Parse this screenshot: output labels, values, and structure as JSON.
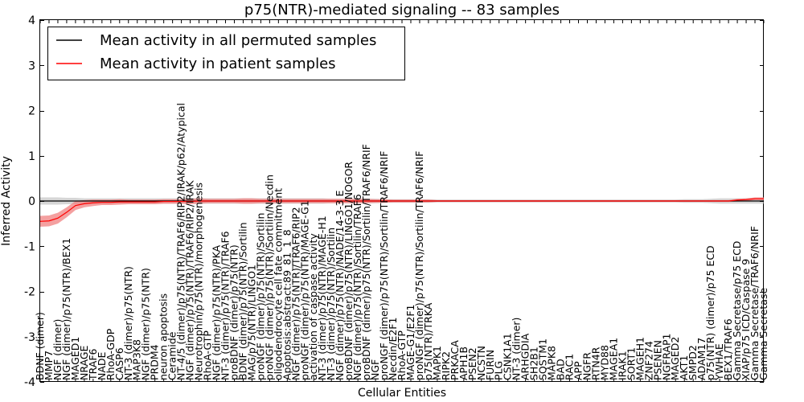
{
  "chart_data": {
    "type": "line",
    "title": "p75(NTR)-mediated signaling -- 83 samples",
    "xlabel": "Cellular Entities",
    "ylabel": "Inferred Activity",
    "ylim": [
      -4,
      4
    ],
    "yticks": [
      -4,
      -3,
      -2,
      -1,
      0,
      1,
      2,
      3,
      4
    ],
    "legend": {
      "position": "top-left",
      "entries": [
        {
          "name": "Mean activity in all permuted samples",
          "color": "#000000"
        },
        {
          "name": "Mean activity in patient samples",
          "color": "#ff0000"
        }
      ]
    },
    "colors": {
      "permuted_line": "#000000",
      "permuted_band": "#bbbbbb",
      "patient_line": "#ff0000",
      "patient_band": "#f08080"
    },
    "categories": [
      "BDNF (dimer)",
      "MMP7",
      "NGF (dimer)",
      "NGF (dimer)/p75(NTR)/BEX1",
      "MAGED1",
      "NRAGE",
      "TRAF6",
      "NADE",
      "RhoA-GDP",
      "CASP6",
      "NT-3 (dimer)/p75(NTR)",
      "MAP3K8",
      "NGF (dimer)/p75(NTR)",
      "PRDM4",
      "neuron apoptosis",
      "Ceramide",
      "NT-4/5 (dimer)/p75(NTR)/TRAF6/RIP2/IRAK/p62/Atypical",
      "NGF (dimer)/p75(NTR)/TRAF6/RIP2/IRAK",
      "Neurotrophin/p75(NTR)/morphogenesis",
      "RhoA-GTP",
      "NGF (dimer)/p75(NTR)/PKA",
      "NT-3 (dimer)/p75(NTR)/TRAF6",
      "proBDNF (dimer)/p75(NTR)",
      "BDNF (dimer)/p75(NTR)/Sortilin",
      "MAG/p75(NTR)/LINGO1",
      "proNGF (dimer)/p75(NTR)/Sortilin",
      "proNGF (dimer)/p75(NTR)/Sortilin/Necdin",
      "oligodendrocyte cell fate commitment",
      "Apoptosis:abstract:89_81_1_8",
      "NGF (dimer)/p75(NTR)/TRAF6/RIP2",
      "proNGF (dimer)/p75(NTR)/MAGE-G1",
      "activation of caspase activity",
      "NT-3 (dimer)/p75(NTR)/MAGE-H1",
      "NT-3 (dimer)/p75(NTR)/Sortilin",
      "NGF (dimer)/p75(NTR)/NADE/14-3-3 E",
      "proBDNF (dimer)/p75(NTR)/LINGO1/NOGOR",
      "NGF (dimer)/p75(NTR)/Sortilin/TRAF6",
      "proBDNF (dimer)/p75(NTR)/Sortilin/TRAF6/NRIF",
      "NGF",
      "proNGF (dimer)/p75(NTR)/Sortilin/TRAF6/NRIF",
      "Necdin/E2F1",
      "RhoA-GTP",
      "MAGE-G1/E2F1",
      "proNGF (dimer)/p75(NTR)/Sortilin/TRAF6/NRIF",
      "p75(NTR)/TRKA",
      "MAPK1",
      "RIPK2",
      "PRKACA",
      "APH1B",
      "PSEN2",
      "NCSTN",
      "FURIN",
      "PLG",
      "CSNK1A1",
      "NT-3 (dimer)",
      "ARHGDIA",
      "SH2B1",
      "SQSTM1",
      "MAPK8",
      "BAD",
      "RAC1",
      "APP",
      "NGFR",
      "RTN4R",
      "MYD88",
      "MAGEA1",
      "IRAK1",
      "SORT1",
      "MAGEH1",
      "ZNF274",
      "PSENEN",
      "NGFRAP1",
      "MAGED2",
      "AKT1",
      "SMPD2",
      "ADAM17",
      "p75(NTR) (dimer)/p75 ECD",
      "YWHAE",
      "BEX1/TRAF6",
      "Gamma Secretase/p75 ECD",
      "XIAP/p75 ICD/Caspase 9",
      "Gamma Secretase/TRAF6/NRIF",
      "Gamma Secretase"
    ],
    "patient_mean": [
      -0.45,
      -0.44,
      -0.38,
      -0.25,
      -0.1,
      -0.06,
      -0.04,
      -0.03,
      -0.03,
      -0.02,
      -0.02,
      -0.02,
      -0.02,
      -0.02,
      -0.01,
      -0.01,
      -0.01,
      -0.01,
      0.0,
      0.0,
      0.0,
      0.0,
      0.0,
      0.0,
      0.0,
      0.0,
      0.0,
      0.0,
      0.0,
      0.0,
      0.0,
      0.0,
      0.0,
      0.0,
      0.0,
      0.0,
      0.0,
      0.0,
      0.0,
      0.0,
      0.0,
      0.0,
      0.0,
      0.0,
      0.0,
      0.0,
      0.0,
      0.0,
      0.0,
      0.0,
      0.0,
      0.0,
      0.0,
      0.0,
      0.0,
      0.0,
      0.0,
      0.0,
      0.0,
      0.0,
      0.0,
      0.0,
      0.0,
      0.0,
      0.0,
      0.0,
      0.0,
      0.0,
      0.0,
      0.0,
      0.0,
      0.0,
      0.0,
      0.0,
      0.0,
      0.0,
      0.0,
      0.0,
      0.0,
      0.02,
      0.03,
      0.05,
      0.05
    ],
    "patient_band_halfwidth": [
      0.12,
      0.12,
      0.12,
      0.11,
      0.1,
      0.08,
      0.07,
      0.06,
      0.06,
      0.06,
      0.05,
      0.05,
      0.05,
      0.05,
      0.05,
      0.05,
      0.05,
      0.06,
      0.06,
      0.05,
      0.05,
      0.05,
      0.05,
      0.06,
      0.06,
      0.05,
      0.05,
      0.05,
      0.05,
      0.05,
      0.05,
      0.05,
      0.05,
      0.05,
      0.05,
      0.05,
      0.05,
      0.05,
      0.04,
      0.04,
      0.03,
      0.03,
      0.03,
      0.03,
      0.03,
      0.02,
      0.02,
      0.02,
      0.02,
      0.02,
      0.02,
      0.02,
      0.02,
      0.02,
      0.02,
      0.02,
      0.02,
      0.02,
      0.02,
      0.02,
      0.02,
      0.02,
      0.02,
      0.02,
      0.02,
      0.02,
      0.02,
      0.02,
      0.02,
      0.02,
      0.02,
      0.02,
      0.02,
      0.02,
      0.02,
      0.02,
      0.02,
      0.02,
      0.02,
      0.03,
      0.03,
      0.03,
      0.03
    ],
    "permuted_mean": [
      0.0,
      0.0,
      0.0,
      0.0,
      0.0,
      0.0,
      0.0,
      0.0,
      0.0,
      0.0,
      0.0,
      0.0,
      0.0,
      0.0,
      0.0,
      0.0,
      0.0,
      0.0,
      0.0,
      0.0,
      0.0,
      0.0,
      0.0,
      0.0,
      0.0,
      0.0,
      0.0,
      0.0,
      0.0,
      0.0,
      0.0,
      0.0,
      0.0,
      0.0,
      0.0,
      0.0,
      0.0,
      0.0,
      0.0,
      0.0,
      0.0,
      0.0,
      0.0,
      0.0,
      0.0,
      0.0,
      0.0,
      0.0,
      0.0,
      0.0,
      0.0,
      0.0,
      0.0,
      0.0,
      0.0,
      0.0,
      0.0,
      0.0,
      0.0,
      0.0,
      0.0,
      0.0,
      0.0,
      0.0,
      0.0,
      0.0,
      0.0,
      0.0,
      0.0,
      0.0,
      0.0,
      0.0,
      0.0,
      0.0,
      0.0,
      0.0,
      0.0,
      0.0,
      0.0,
      0.0,
      0.0,
      0.0,
      0.0
    ],
    "permuted_band_halfwidth": [
      0.08,
      0.08,
      0.08,
      0.07,
      0.07,
      0.06,
      0.06,
      0.06,
      0.06,
      0.06,
      0.06,
      0.06,
      0.06,
      0.06,
      0.06,
      0.06,
      0.06,
      0.06,
      0.06,
      0.06,
      0.06,
      0.06,
      0.06,
      0.06,
      0.06,
      0.06,
      0.06,
      0.06,
      0.06,
      0.06,
      0.06,
      0.06,
      0.06,
      0.05,
      0.05,
      0.05,
      0.05,
      0.05,
      0.05,
      0.04,
      0.04,
      0.04,
      0.04,
      0.04,
      0.04,
      0.03,
      0.03,
      0.03,
      0.03,
      0.03,
      0.03,
      0.03,
      0.03,
      0.03,
      0.03,
      0.03,
      0.03,
      0.03,
      0.03,
      0.03,
      0.03,
      0.03,
      0.03,
      0.03,
      0.03,
      0.03,
      0.03,
      0.03,
      0.03,
      0.03,
      0.03,
      0.03,
      0.03,
      0.04,
      0.04,
      0.04,
      0.05,
      0.06,
      0.06,
      0.06,
      0.06,
      0.06,
      0.06
    ]
  }
}
